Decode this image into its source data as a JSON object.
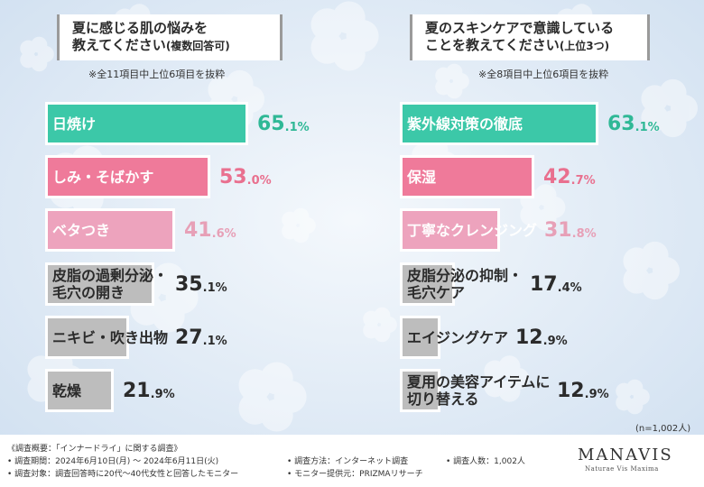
{
  "colors": {
    "teal": "#3cc8a8",
    "pink": "#ef7a9a",
    "lightpink": "#eda3bd",
    "gray": "#bdbdbd",
    "teal_text": "#2fb896",
    "pink_text": "#e9708f",
    "lightpink_text": "#e7a0b7",
    "dark_text": "#2b2b2b"
  },
  "left_panel": {
    "title_line1": "夏に感じる肌の悩みを",
    "title_line2": "教えてください",
    "title_sub": "(複数回答可)",
    "note": "※全11項目中上位6項目を抜粋"
  },
  "right_panel": {
    "title_line1": "夏のスキンケアで意識している",
    "title_line2": "ことを教えてください",
    "title_sub": "(上位3つ)",
    "note": "※全8項目中上位6項目を抜粋"
  },
  "chart_data": [
    {
      "type": "bar",
      "orientation": "horizontal",
      "title": "夏に感じる肌の悩みを教えてください(複数回答可)",
      "unit": "%",
      "xlim": [
        0,
        100
      ],
      "categories": [
        "日焼け",
        "しみ・そばかす",
        "ベタつき",
        "皮脂の過剰分泌・毛穴の開き",
        "ニキビ・吹き出物",
        "乾燥"
      ],
      "label_lines": [
        [
          "日焼け"
        ],
        [
          "しみ・そばかす"
        ],
        [
          "ベタつき"
        ],
        [
          "皮脂の過剰分泌・",
          "毛穴の開き"
        ],
        [
          "ニキビ・吹き出物"
        ],
        [
          "乾燥"
        ]
      ],
      "values": [
        65.1,
        53.0,
        41.6,
        35.1,
        27.1,
        21.9
      ],
      "value_int": [
        "65",
        "53",
        "41",
        "35",
        "27",
        "21"
      ],
      "value_dec": [
        ".1%",
        ".0%",
        ".6%",
        ".1%",
        ".1%",
        ".9%"
      ],
      "color_keys": [
        "teal",
        "pink",
        "lightpink",
        "gray",
        "gray",
        "gray"
      ]
    },
    {
      "type": "bar",
      "orientation": "horizontal",
      "title": "夏のスキンケアで意識していることを教えてください(上位3つ)",
      "unit": "%",
      "xlim": [
        0,
        100
      ],
      "categories": [
        "紫外線対策の徹底",
        "保湿",
        "丁寧なクレンジング",
        "皮脂分泌の抑制・毛穴ケア",
        "エイジングケア",
        "夏用の美容アイテムに切り替える"
      ],
      "label_lines": [
        [
          "紫外線対策の徹底"
        ],
        [
          "保湿"
        ],
        [
          "丁寧なクレンジング"
        ],
        [
          "皮脂分泌の抑制・",
          "毛穴ケア"
        ],
        [
          "エイジングケア"
        ],
        [
          "夏用の美容アイテムに",
          "切り替える"
        ]
      ],
      "values": [
        63.1,
        42.7,
        31.8,
        17.4,
        12.9,
        12.9
      ],
      "value_int": [
        "63",
        "42",
        "31",
        "17",
        "12",
        "12"
      ],
      "value_dec": [
        ".1%",
        ".7%",
        ".8%",
        ".4%",
        ".9%",
        ".9%"
      ],
      "color_keys": [
        "teal",
        "pink",
        "lightpink",
        "gray",
        "gray",
        "gray"
      ]
    }
  ],
  "n_note": "(n=1,002人)",
  "footer": {
    "line1": "《調査概要：「インナードライ」に関する調査》",
    "line2a": "• 調査期間：2024年6月10日(月) ～ 2024年6月11日(火)",
    "line2b": "• 調査方法：インターネット調査",
    "line2c": "• 調査人数：1,002人",
    "line3a": "• 調査対象：調査回答時に20代～40代女性と回答したモニター",
    "line3b": "• モニター提供元：PRIZMAリサーチ"
  },
  "logo": {
    "name": "MANAVIS",
    "tagline": "Naturae Vis Maxima"
  }
}
